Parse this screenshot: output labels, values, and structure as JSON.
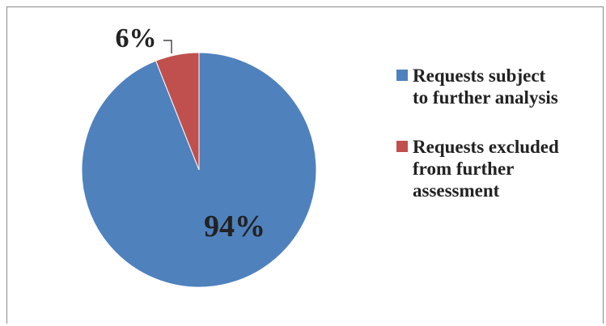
{
  "chart_data": {
    "type": "pie",
    "slices": [
      {
        "label": "Requests subject to further analysis",
        "value": 94,
        "color": "#4f81bd",
        "data_label": "94%"
      },
      {
        "label": "Requests excluded from further assessment",
        "value": 6,
        "color": "#c0504d",
        "data_label": "6%"
      }
    ],
    "legend_position": "right"
  },
  "legend": {
    "items": [
      {
        "text": "Requests subject\nto further analysis"
      },
      {
        "text": "Requests excluded\nfrom further\nassessment"
      }
    ]
  }
}
